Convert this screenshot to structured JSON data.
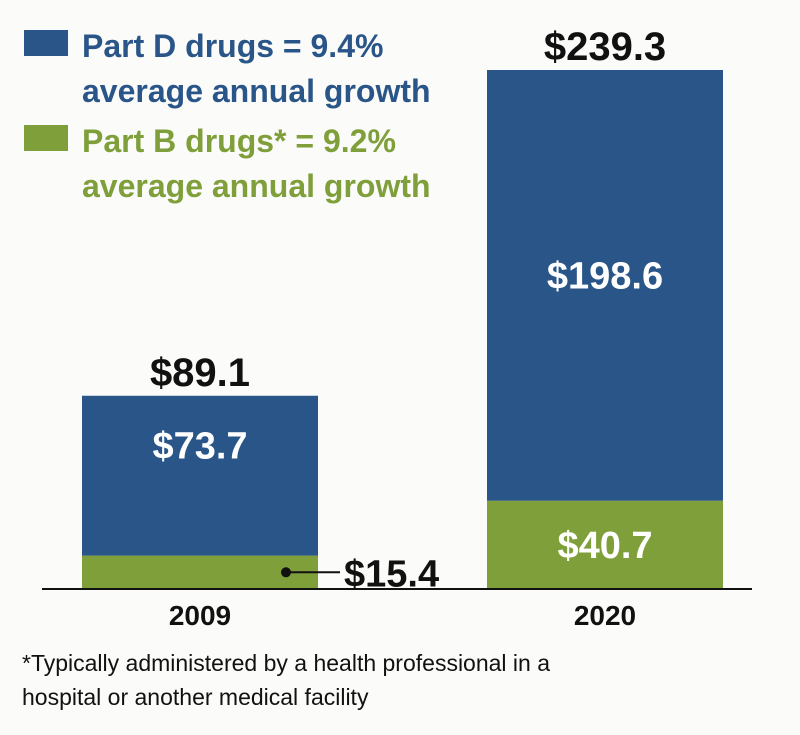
{
  "colors": {
    "part_d": "#2a5588",
    "part_b": "#7f9f3a",
    "axis": "#111111",
    "text_dark": "#111111",
    "segment_text": "#ffffff"
  },
  "legend": [
    {
      "series": "part_d",
      "lines": [
        "Part D drugs = 9.4%",
        "average annual growth"
      ]
    },
    {
      "series": "part_b",
      "lines": [
        "Part B drugs* = 9.2%",
        "average annual growth"
      ]
    }
  ],
  "chart_data": {
    "type": "bar",
    "stacked": true,
    "categories": [
      "2009",
      "2020"
    ],
    "series": [
      {
        "key": "part_b",
        "values": [
          15.4,
          40.7
        ],
        "labels": [
          "$15.4",
          "$40.7"
        ]
      },
      {
        "key": "part_d",
        "values": [
          73.7,
          198.6
        ],
        "labels": [
          "$73.7",
          "$198.6"
        ]
      }
    ],
    "totals": [
      89.1,
      239.3
    ],
    "total_labels": [
      "$89.1",
      "$239.3"
    ],
    "ylim": [
      0,
      239.3
    ],
    "grid": false,
    "legend_position": "top-left"
  },
  "footnote": [
    "*Typically administered by a health professional in a",
    "hospital or another medical facility"
  ]
}
